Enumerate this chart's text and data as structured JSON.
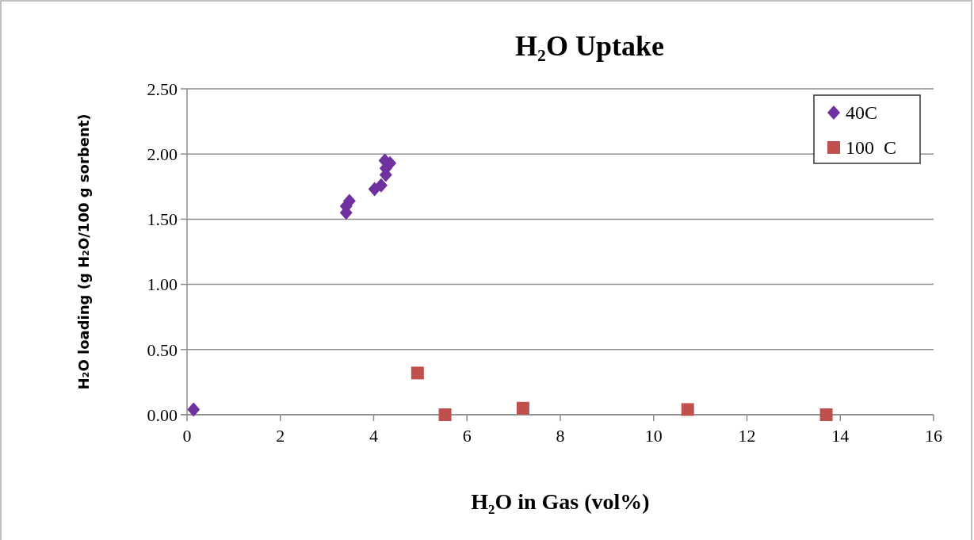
{
  "chart_data": {
    "type": "scatter",
    "title": "H₂O Uptake",
    "xlabel": "H₂O in Gas (vol%)",
    "ylabel": "H₂O loading (g H₂O/100 g sorbent)",
    "series": [
      {
        "name": "40C",
        "color": "#7030a0",
        "marker": "diamond",
        "x": [
          0.14,
          3.41,
          3.41,
          3.48,
          4.02,
          4.16,
          4.26,
          4.26,
          4.24,
          4.35
        ],
        "values": [
          0.04,
          1.55,
          1.6,
          1.64,
          1.73,
          1.76,
          1.84,
          1.89,
          1.95,
          1.93
        ]
      },
      {
        "name": "100  C",
        "color": "#c0504d",
        "marker": "square",
        "x": [
          4.94,
          5.53,
          7.2,
          10.73,
          13.7
        ],
        "values": [
          0.32,
          0.0,
          0.05,
          0.04,
          0.0
        ]
      }
    ],
    "xlim": [
      0,
      16
    ],
    "xticks": [
      0,
      2,
      4,
      6,
      8,
      10,
      12,
      14,
      16
    ],
    "ylim": [
      0,
      2.5
    ],
    "yticks": [
      {
        "value": 0,
        "label": "0.00"
      },
      {
        "value": 0.5,
        "label": "0.50"
      },
      {
        "value": 1,
        "label": "1.00"
      },
      {
        "value": 1.5,
        "label": "1.50"
      },
      {
        "value": 2,
        "label": "2.00"
      },
      {
        "value": 2.5,
        "label": "2.50"
      }
    ],
    "grid": "y",
    "legend": "top right"
  }
}
